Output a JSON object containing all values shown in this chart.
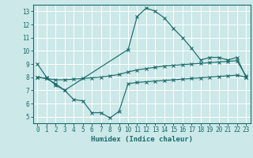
{
  "xlabel": "Humidex (Indice chaleur)",
  "bg_color": "#cce8e8",
  "grid_color": "#ffffff",
  "line_color": "#1a6b6b",
  "xlim": [
    -0.5,
    23.5
  ],
  "ylim": [
    4.5,
    13.5
  ],
  "yticks": [
    5,
    6,
    7,
    8,
    9,
    10,
    11,
    12,
    13
  ],
  "xticks": [
    0,
    1,
    2,
    3,
    4,
    5,
    6,
    7,
    8,
    9,
    10,
    11,
    12,
    13,
    14,
    15,
    16,
    17,
    18,
    19,
    20,
    21,
    22,
    23
  ],
  "line1_x": [
    0,
    1,
    2,
    3,
    10,
    11,
    12,
    13,
    14,
    15,
    16,
    17,
    18,
    19,
    20,
    21,
    22,
    23
  ],
  "line1_y": [
    9.0,
    8.0,
    7.4,
    7.0,
    10.1,
    12.6,
    13.25,
    13.0,
    12.5,
    11.7,
    11.0,
    10.2,
    9.3,
    9.5,
    9.5,
    9.3,
    9.5,
    8.0
  ],
  "line2_x": [
    0,
    1,
    2,
    3,
    4,
    5,
    6,
    7,
    8,
    9,
    10,
    11,
    12,
    13,
    14,
    15,
    16,
    17,
    18,
    19,
    20,
    21,
    22,
    23
  ],
  "line2_y": [
    8.0,
    7.9,
    7.8,
    7.8,
    7.85,
    7.9,
    7.95,
    8.0,
    8.1,
    8.2,
    8.4,
    8.55,
    8.65,
    8.75,
    8.85,
    8.9,
    8.95,
    9.0,
    9.05,
    9.1,
    9.15,
    9.2,
    9.25,
    8.1
  ],
  "line3_x": [
    0,
    1,
    2,
    3,
    4,
    5,
    6,
    7,
    8,
    9,
    10,
    11,
    12,
    13,
    14,
    15,
    16,
    17,
    18,
    19,
    20,
    21,
    22,
    23
  ],
  "line3_y": [
    8.0,
    7.9,
    7.5,
    7.0,
    6.3,
    6.2,
    5.3,
    5.3,
    4.9,
    5.4,
    7.5,
    7.6,
    7.65,
    7.7,
    7.75,
    7.8,
    7.85,
    7.9,
    7.95,
    8.0,
    8.05,
    8.1,
    8.15,
    8.0
  ]
}
